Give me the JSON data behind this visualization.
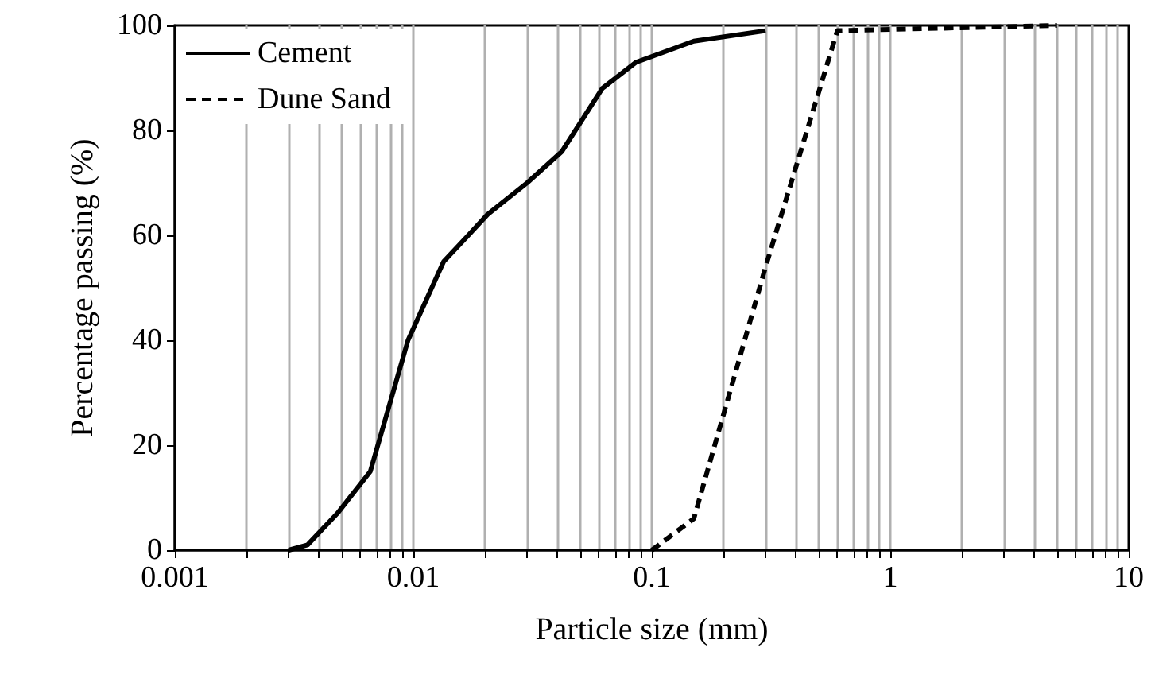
{
  "chart_data": {
    "type": "line",
    "xlabel": "Particle size (mm)",
    "ylabel": "Percentage passing (%)",
    "log": "x",
    "xlim": [
      0.001,
      10
    ],
    "ylim": [
      0,
      100
    ],
    "xticks": [
      0.001,
      {
        "value": 0.002,
        "label": null
      },
      {
        "value": 0.003,
        "label": null
      },
      {
        "value": 0.004,
        "label": null
      },
      {
        "value": 0.005,
        "label": null
      },
      {
        "value": 0.006,
        "label": null
      },
      {
        "value": 0.007,
        "label": null
      },
      {
        "value": 0.008,
        "label": null
      },
      {
        "value": 0.009,
        "label": null
      },
      0.01,
      {
        "value": 0.02,
        "label": null
      },
      {
        "value": 0.03,
        "label": null
      },
      {
        "value": 0.04,
        "label": null
      },
      {
        "value": 0.05,
        "label": null
      },
      {
        "value": 0.06,
        "label": null
      },
      {
        "value": 0.07,
        "label": null
      },
      {
        "value": 0.08,
        "label": null
      },
      {
        "value": 0.09,
        "label": null
      },
      0.1,
      {
        "value": 0.2,
        "label": null
      },
      {
        "value": 0.3,
        "label": null
      },
      {
        "value": 0.4,
        "label": null
      },
      {
        "value": 0.5,
        "label": null
      },
      {
        "value": 0.6,
        "label": null
      },
      {
        "value": 0.7,
        "label": null
      },
      {
        "value": 0.8,
        "label": null
      },
      {
        "value": 0.9,
        "label": null
      },
      1,
      {
        "value": 2,
        "label": null
      },
      {
        "value": 3,
        "label": null
      },
      {
        "value": 4,
        "label": null
      },
      {
        "value": 5,
        "label": null
      },
      {
        "value": 6,
        "label": null
      },
      {
        "value": 7,
        "label": null
      },
      {
        "value": 8,
        "label": null
      },
      {
        "value": 9,
        "label": null
      },
      10
    ],
    "yticks": [
      0,
      20,
      40,
      60,
      80,
      100
    ],
    "grid": "x",
    "legend": "top left",
    "marker": "none",
    "series": [
      {
        "name": "Cement",
        "color": "#000000",
        "line_style": "solid",
        "x": [
          0.003,
          0.0036,
          0.0048,
          0.0066,
          0.0095,
          0.0134,
          0.017,
          0.0205,
          0.03,
          0.042,
          0.062,
          0.086,
          0.15,
          0.3
        ],
        "values": [
          0,
          1,
          7,
          15,
          40,
          55,
          60,
          64,
          70,
          76,
          88,
          93,
          97,
          99
        ]
      },
      {
        "name": "Dune Sand",
        "color": "#000000",
        "line_style": "dashed",
        "x": [
          0.1,
          0.15,
          0.3,
          0.6,
          5
        ],
        "values": [
          0,
          6,
          54,
          99,
          100
        ]
      }
    ]
  }
}
